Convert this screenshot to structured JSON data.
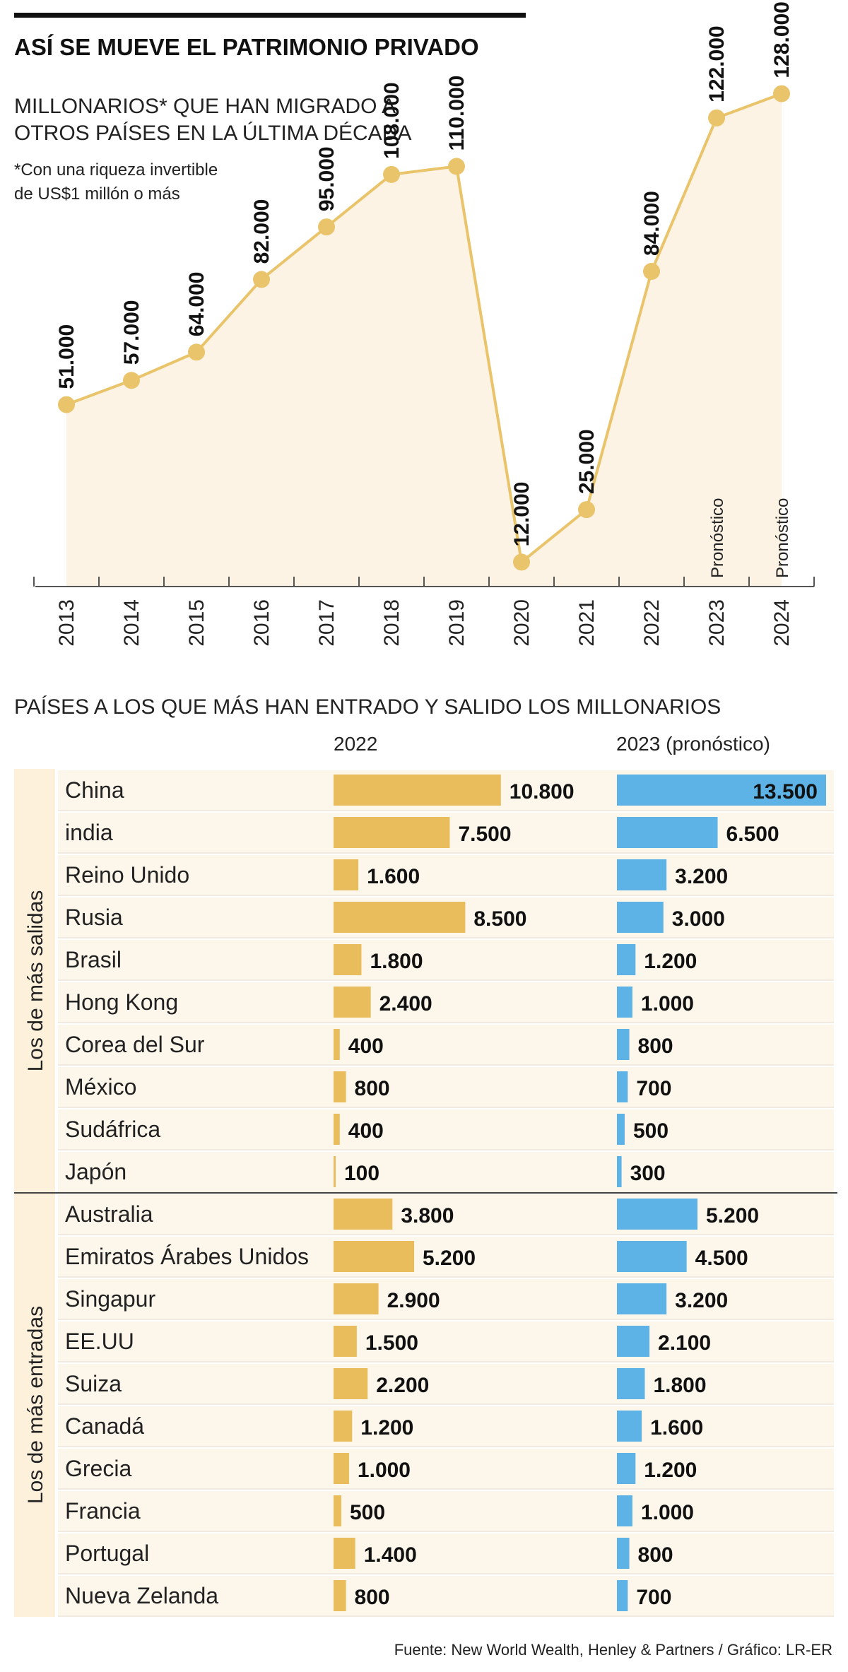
{
  "header": {
    "title": "ASÍ SE MUEVE EL PATRIMONIO PRIVADO",
    "subtitle_line1": "MILLONARIOS* QUE HAN MIGRADO A",
    "subtitle_line2": "OTROS PAÍSES EN LA ÚLTIMA DÉCADA",
    "note_line1": "*Con una riqueza invertible",
    "note_line2": "de US$1 millón o más"
  },
  "section2": {
    "title": "PAÍSES A LOS QUE MÁS HAN ENTRADO Y SALIDO LOS MILLONARIOS",
    "col_2022": "2022",
    "col_2023": "2023 (pronóstico)",
    "group_out": "Los de más salidas",
    "group_in": "Los de más entradas"
  },
  "footer": {
    "source": "Fuente: New World Wealth, Henley & Partners / Gráfico: LR-ER"
  },
  "colors": {
    "gold": "#e9bd5b",
    "line": "#e9c46a",
    "fill": "#fdf3e4",
    "blue": "#5db3e6",
    "rowbg": "#fdf6ea",
    "groupbg": "#fdf1dc"
  },
  "chart_data": [
    {
      "type": "line",
      "title": "MILLONARIOS* QUE HAN MIGRADO A OTROS PAÍSES EN LA ÚLTIMA DÉCADA",
      "x": [
        "2013",
        "2014",
        "2015",
        "2016",
        "2017",
        "2018",
        "2019",
        "2020",
        "2021",
        "2022",
        "2023",
        "2024"
      ],
      "values": [
        51000,
        57000,
        64000,
        82000,
        95000,
        108000,
        110000,
        12000,
        25000,
        84000,
        122000,
        128000
      ],
      "value_labels": [
        "51.000",
        "57.000",
        "64.000",
        "82.000",
        "95.000",
        "108.000",
        "110.000",
        "12.000",
        "25.000",
        "84.000",
        "122.000",
        "128.000"
      ],
      "annotations": [
        {
          "x": "2023",
          "text": "Pronóstico"
        },
        {
          "x": "2024",
          "text": "Pronóstico"
        }
      ],
      "ylim": [
        0,
        140000
      ],
      "grid": false
    },
    {
      "type": "bar",
      "orientation": "horizontal",
      "title": "PAÍSES A LOS QUE MÁS HAN ENTRADO Y SALIDO LOS MILLONARIOS",
      "groups": [
        {
          "name": "Los de más salidas",
          "categories": [
            "China",
            "india",
            "Reino Unido",
            "Rusia",
            "Brasil",
            "Hong Kong",
            "Corea del Sur",
            "México",
            "Sudáfrica",
            "Japón"
          ]
        },
        {
          "name": "Los de más entradas",
          "categories": [
            "Australia",
            "Emiratos Árabes Unidos",
            "Singapur",
            "EE.UU",
            "Suiza",
            "Canadá",
            "Grecia",
            "Francia",
            "Portugal",
            "Nueva Zelanda"
          ]
        }
      ],
      "series": [
        {
          "name": "2022",
          "values": [
            10800,
            7500,
            1600,
            8500,
            1800,
            2400,
            400,
            800,
            400,
            100,
            3800,
            5200,
            2900,
            1500,
            2200,
            1200,
            1000,
            500,
            1400,
            800
          ],
          "labels": [
            "10.800",
            "7.500",
            "1.600",
            "8.500",
            "1.800",
            "2.400",
            "400",
            "800",
            "400",
            "100",
            "3.800",
            "5.200",
            "2.900",
            "1.500",
            "2.200",
            "1.200",
            "1.000",
            "500",
            "1.400",
            "800"
          ]
        },
        {
          "name": "2023 (pronóstico)",
          "values": [
            13500,
            6500,
            3200,
            3000,
            1200,
            1000,
            800,
            700,
            500,
            300,
            5200,
            4500,
            3200,
            2100,
            1800,
            1600,
            1200,
            1000,
            800,
            700
          ],
          "labels": [
            "13.500",
            "6.500",
            "3.200",
            "3.000",
            "1.200",
            "1.000",
            "800",
            "700",
            "500",
            "300",
            "5.200",
            "4.500",
            "3.200",
            "2.100",
            "1.800",
            "1.600",
            "1.200",
            "1.000",
            "800",
            "700"
          ]
        }
      ]
    }
  ]
}
